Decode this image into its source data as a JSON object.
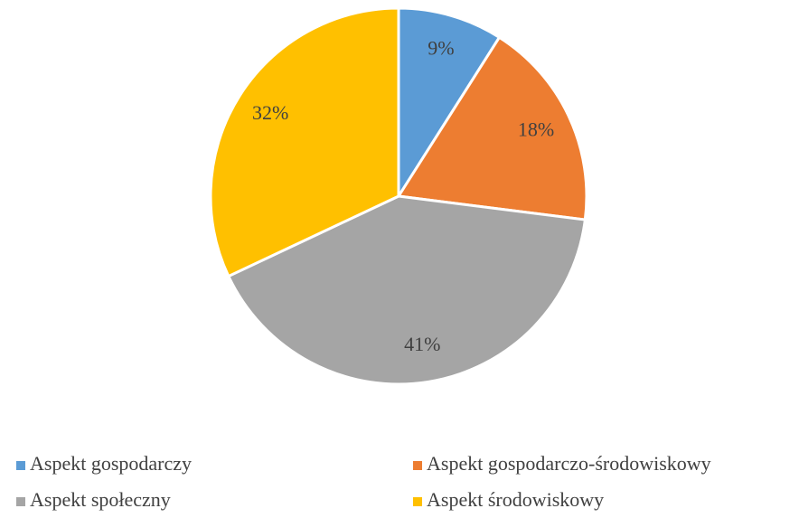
{
  "chart_data": {
    "type": "pie",
    "categories": [
      "Aspekt gospodarczy",
      "Aspekt gospodarczo-środowiskowy",
      "Aspekt społeczny",
      "Aspekt środowiskowy"
    ],
    "values": [
      9,
      18,
      41,
      32
    ],
    "value_labels": [
      "9%",
      "18%",
      "41%",
      "32%"
    ],
    "colors": [
      "#5b9bd5",
      "#ed7d31",
      "#a5a5a5",
      "#ffc000"
    ],
    "legend": "bottom"
  }
}
